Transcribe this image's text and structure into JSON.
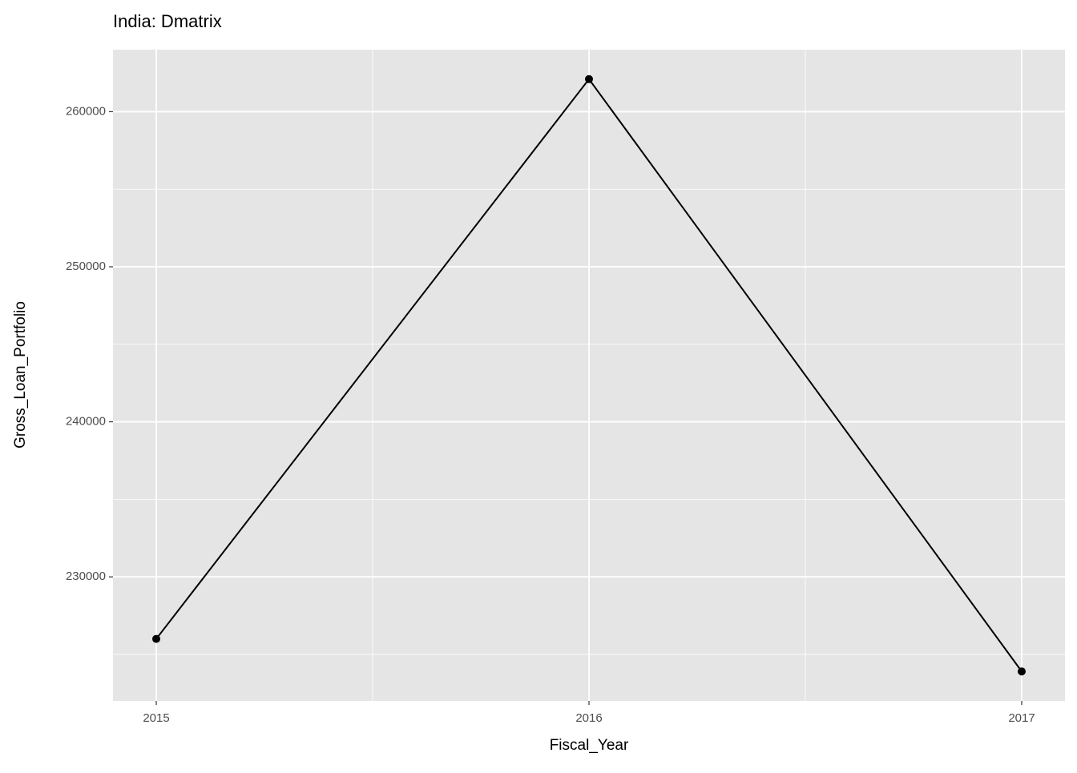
{
  "chart_data": {
    "type": "line",
    "title": "India:  Dmatrix",
    "x_label": "Fiscal_Year",
    "y_label": "Gross_Loan_Portfolio",
    "x": [
      2015,
      2016,
      2017
    ],
    "series": [
      {
        "name": "Gross_Loan_Portfolio",
        "color": "#000000",
        "values": [
          226000,
          262100,
          223900
        ]
      }
    ],
    "xlim": [
      2014.9,
      2017.1
    ],
    "xticks": [
      2015,
      2016,
      2017
    ],
    "ylim": [
      222000,
      264000
    ],
    "yticks": [
      230000,
      240000,
      250000,
      260000
    ],
    "grid": true
  }
}
